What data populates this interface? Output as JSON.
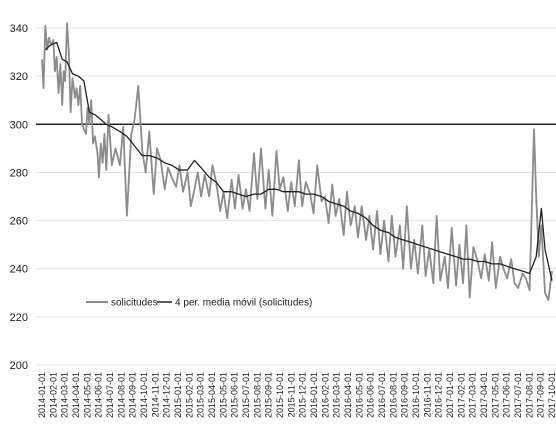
{
  "chart_data": {
    "type": "line",
    "title": "",
    "xlabel": "",
    "ylabel": "",
    "ylim": [
      200,
      345
    ],
    "yticks": [
      200,
      220,
      240,
      260,
      280,
      300,
      320,
      340
    ],
    "grid": "horizontal",
    "legend_position": "bottom-left",
    "x_tick_labels": [
      "2014-01-01",
      "2014-02-01",
      "2014-03-01",
      "2014-04-01",
      "2014-05-01",
      "2014-06-01",
      "2014-07-01",
      "2014-08-01",
      "2014-09-01",
      "2014-10-01",
      "2014-11-01",
      "2014-12-01",
      "2015-01-01",
      "2015-02-01",
      "2015-03-01",
      "2015-04-01",
      "2015-05-01",
      "2015-06-01",
      "2015-07-01",
      "2015-08-01",
      "2015-09-01",
      "2015-10-01",
      "2015-11-01",
      "2015-12-01",
      "2016-01-01",
      "2016-02-01",
      "2016-03-01",
      "2016-04-01",
      "2016-05-01",
      "2016-06-01",
      "2016-07-01",
      "2016-08-01",
      "2016-09-01",
      "2016-10-01",
      "2016-11-01",
      "2016-12-01",
      "2017-01-01",
      "2017-02-01",
      "2017-03-01",
      "2017-04-01",
      "2017-05-01",
      "2017-06-01",
      "2017-07-01",
      "2017-08-01",
      "2017-09-01",
      "2017-10-01"
    ],
    "reference_line": {
      "value": 300,
      "color": "#222222"
    },
    "series": [
      {
        "name": "solicitudes",
        "color": "#8c8c8c",
        "x": [
          "2014-01-01",
          "2014-01-05",
          "2014-01-10",
          "2014-01-15",
          "2014-01-20",
          "2014-01-25",
          "2014-02-01",
          "2014-02-05",
          "2014-02-10",
          "2014-02-15",
          "2014-02-20",
          "2014-02-25",
          "2014-03-01",
          "2014-03-05",
          "2014-03-10",
          "2014-03-15",
          "2014-03-20",
          "2014-03-25",
          "2014-04-01",
          "2014-04-05",
          "2014-04-10",
          "2014-04-15",
          "2014-04-20",
          "2014-04-25",
          "2014-05-01",
          "2014-05-05",
          "2014-05-10",
          "2014-05-15",
          "2014-05-20",
          "2014-05-25",
          "2014-06-01",
          "2014-06-05",
          "2014-06-10",
          "2014-06-15",
          "2014-06-20",
          "2014-06-25",
          "2014-07-01",
          "2014-07-10",
          "2014-07-20",
          "2014-08-01",
          "2014-08-10",
          "2014-08-20",
          "2014-09-01",
          "2014-09-10",
          "2014-09-20",
          "2014-10-01",
          "2014-10-10",
          "2014-10-20",
          "2014-11-01",
          "2014-11-10",
          "2014-11-20",
          "2014-12-01",
          "2014-12-10",
          "2014-12-20",
          "2015-01-01",
          "2015-01-10",
          "2015-01-20",
          "2015-02-01",
          "2015-02-10",
          "2015-02-20",
          "2015-03-01",
          "2015-03-10",
          "2015-03-20",
          "2015-04-01",
          "2015-04-10",
          "2015-04-20",
          "2015-05-01",
          "2015-05-10",
          "2015-05-20",
          "2015-06-01",
          "2015-06-10",
          "2015-06-20",
          "2015-07-01",
          "2015-07-10",
          "2015-07-20",
          "2015-08-01",
          "2015-08-10",
          "2015-08-20",
          "2015-09-01",
          "2015-09-10",
          "2015-09-20",
          "2015-10-01",
          "2015-10-10",
          "2015-10-20",
          "2015-11-01",
          "2015-11-10",
          "2015-11-20",
          "2015-12-01",
          "2015-12-10",
          "2015-12-20",
          "2016-01-01",
          "2016-01-10",
          "2016-01-20",
          "2016-02-01",
          "2016-02-10",
          "2016-02-20",
          "2016-03-01",
          "2016-03-10",
          "2016-03-20",
          "2016-04-01",
          "2016-04-10",
          "2016-04-20",
          "2016-05-01",
          "2016-05-10",
          "2016-05-20",
          "2016-06-01",
          "2016-06-10",
          "2016-06-20",
          "2016-07-01",
          "2016-07-10",
          "2016-07-20",
          "2016-08-01",
          "2016-08-10",
          "2016-08-20",
          "2016-09-01",
          "2016-09-10",
          "2016-09-20",
          "2016-10-01",
          "2016-10-10",
          "2016-10-20",
          "2016-11-01",
          "2016-11-10",
          "2016-11-20",
          "2016-12-01",
          "2016-12-10",
          "2016-12-20",
          "2017-01-01",
          "2017-01-10",
          "2017-01-20",
          "2017-02-01",
          "2017-02-10",
          "2017-02-20",
          "2017-03-01",
          "2017-03-10",
          "2017-03-20",
          "2017-04-01",
          "2017-04-10",
          "2017-04-20",
          "2017-05-01",
          "2017-05-10",
          "2017-05-20",
          "2017-06-01",
          "2017-06-10",
          "2017-06-20",
          "2017-07-01",
          "2017-07-10",
          "2017-07-20",
          "2017-08-01",
          "2017-08-10",
          "2017-08-20",
          "2017-09-01",
          "2017-09-07",
          "2017-09-14",
          "2017-09-21",
          "2017-10-01",
          "2017-10-10",
          "2017-10-20"
        ],
        "values": [
          327,
          315,
          341,
          331,
          336,
          333,
          335,
          322,
          328,
          313,
          325,
          308,
          322,
          318,
          342,
          330,
          305,
          319,
          311,
          315,
          308,
          316,
          300,
          298,
          296,
          307,
          300,
          310,
          292,
          295,
          288,
          278,
          292,
          284,
          296,
          281,
          304,
          283,
          290,
          283,
          299,
          262,
          296,
          302,
          316,
          289,
          280,
          297,
          271,
          290,
          285,
          273,
          282,
          278,
          274,
          283,
          272,
          280,
          266,
          273,
          280,
          270,
          279,
          270,
          283,
          276,
          264,
          272,
          261,
          277,
          265,
          279,
          265,
          273,
          264,
          288,
          269,
          290,
          265,
          281,
          262,
          289,
          273,
          278,
          264,
          276,
          266,
          285,
          266,
          276,
          271,
          263,
          283,
          268,
          270,
          259,
          275,
          262,
          269,
          254,
          272,
          258,
          266,
          253,
          266,
          252,
          262,
          248,
          264,
          246,
          260,
          243,
          262,
          245,
          258,
          240,
          266,
          240,
          252,
          238,
          258,
          237,
          248,
          234,
          262,
          235,
          245,
          232,
          257,
          233,
          250,
          234,
          258,
          228,
          249,
          243,
          236,
          246,
          235,
          251,
          232,
          245,
          240,
          236,
          244,
          234,
          232,
          238,
          236,
          231,
          298,
          270,
          245,
          258,
          230,
          227,
          239
        ]
      },
      {
        "name": "4 per. media móvil (solicitudes)",
        "color": "#222222",
        "x": [
          "2014-01-10",
          "2014-01-25",
          "2014-02-10",
          "2014-02-25",
          "2014-03-10",
          "2014-03-25",
          "2014-04-10",
          "2014-04-25",
          "2014-05-10",
          "2014-05-25",
          "2014-06-10",
          "2014-06-25",
          "2014-07-10",
          "2014-08-01",
          "2014-08-20",
          "2014-09-10",
          "2014-10-01",
          "2014-10-20",
          "2014-11-10",
          "2014-12-01",
          "2014-12-20",
          "2015-01-10",
          "2015-02-01",
          "2015-02-20",
          "2015-03-10",
          "2015-04-01",
          "2015-04-20",
          "2015-05-10",
          "2015-06-01",
          "2015-06-20",
          "2015-07-10",
          "2015-08-01",
          "2015-08-20",
          "2015-09-10",
          "2015-10-01",
          "2015-10-20",
          "2015-11-10",
          "2015-12-01",
          "2015-12-20",
          "2016-01-10",
          "2016-02-01",
          "2016-02-20",
          "2016-03-10",
          "2016-04-01",
          "2016-04-20",
          "2016-05-10",
          "2016-06-01",
          "2016-06-20",
          "2016-07-10",
          "2016-08-01",
          "2016-08-20",
          "2016-09-10",
          "2016-10-01",
          "2016-10-20",
          "2016-11-10",
          "2016-12-01",
          "2016-12-20",
          "2017-01-10",
          "2017-02-01",
          "2017-02-20",
          "2017-03-10",
          "2017-04-01",
          "2017-04-20",
          "2017-05-10",
          "2017-06-01",
          "2017-06-20",
          "2017-07-10",
          "2017-08-01",
          "2017-08-20",
          "2017-09-07",
          "2017-09-21",
          "2017-10-01",
          "2017-10-20"
        ],
        "values": [
          331,
          333,
          334,
          327,
          326,
          321,
          320,
          318,
          305,
          304,
          302,
          300,
          299,
          297,
          295,
          291,
          287,
          287,
          286,
          284,
          283,
          281,
          281,
          285,
          282,
          278,
          276,
          272,
          272,
          271,
          270,
          271,
          271,
          273,
          273,
          272,
          272,
          272,
          271,
          271,
          270,
          268,
          267,
          266,
          264,
          263,
          261,
          258,
          256,
          255,
          253,
          252,
          251,
          250,
          249,
          248,
          247,
          246,
          245,
          244,
          244,
          243,
          243,
          242,
          242,
          241,
          240,
          239,
          238,
          245,
          265,
          248,
          235
        ]
      }
    ]
  }
}
